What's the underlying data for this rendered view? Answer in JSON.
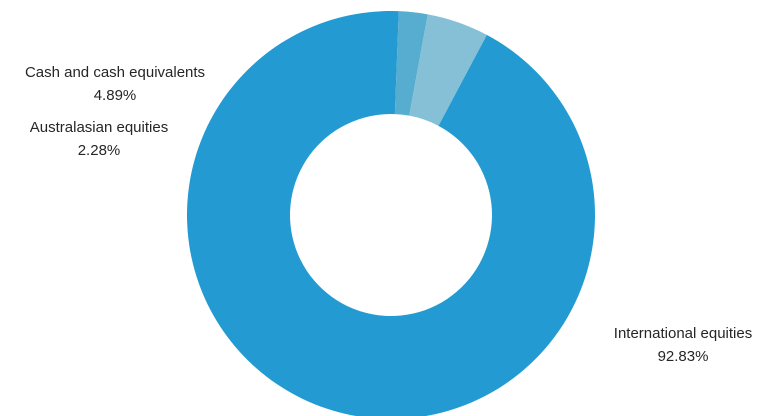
{
  "chart_data": {
    "type": "pie",
    "donut": true,
    "title": "",
    "legend": "none",
    "slices": [
      {
        "label": "International equities",
        "value": 92.83,
        "value_label": "92.83%",
        "color": "#239bd2"
      },
      {
        "label": "Australasian equities",
        "value": 2.28,
        "value_label": "2.28%",
        "color": "#57adcf"
      },
      {
        "label": "Cash and cash equivalents",
        "value": 4.89,
        "value_label": "4.89%",
        "color": "#86c0d6"
      }
    ]
  }
}
